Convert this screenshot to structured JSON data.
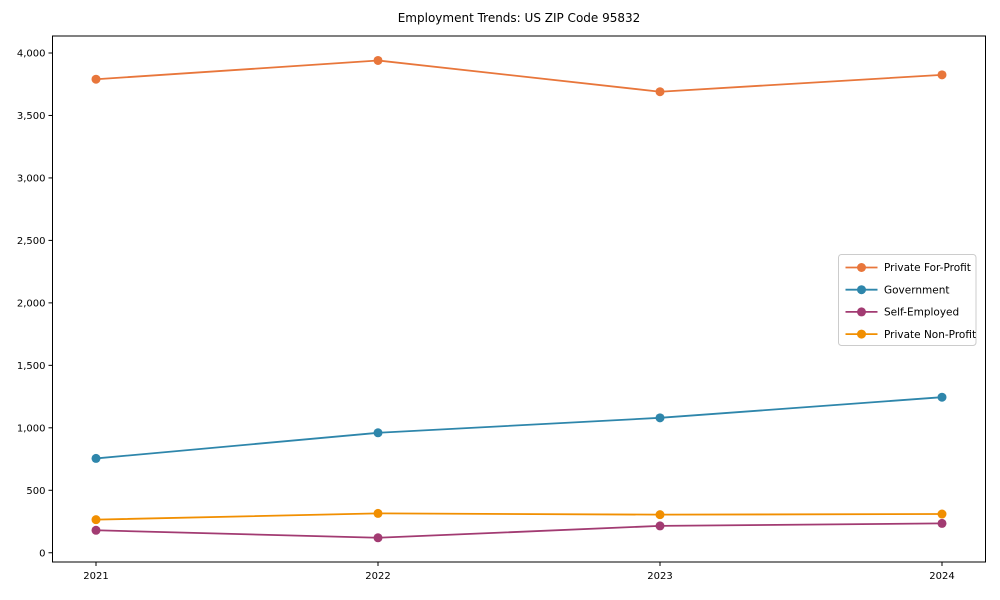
{
  "page": {
    "title": "Employment Trends: US ZIP Code 95832"
  },
  "chart_data": {
    "type": "line",
    "title": "Employment Trends: US ZIP Code 95832",
    "x": [
      2021,
      2022,
      2023,
      2024
    ],
    "x_tick_labels": [
      "2021",
      "2022",
      "2023",
      "2024"
    ],
    "series": [
      {
        "name": "Private For-Profit",
        "color": "#e8763b",
        "values": [
          3790,
          3940,
          3690,
          3825
        ]
      },
      {
        "name": "Government",
        "color": "#2e86ab",
        "values": [
          755,
          960,
          1080,
          1245
        ]
      },
      {
        "name": "Self-Employed",
        "color": "#a23b72",
        "values": [
          180,
          120,
          215,
          235
        ]
      },
      {
        "name": "Private Non-Profit",
        "color": "#f18f01",
        "values": [
          265,
          315,
          305,
          310
        ]
      }
    ],
    "yticks": [
      0,
      500,
      1000,
      1500,
      2000,
      2500,
      3000,
      3500,
      4000
    ],
    "ytick_labels": [
      "0",
      "500",
      "1,000",
      "1,500",
      "2,000",
      "2,500",
      "3,000",
      "3,500",
      "4,000"
    ],
    "ylim": [
      -74,
      4136
    ],
    "grid": false,
    "marker": "circle",
    "legend_position": "center-right",
    "axis_color": "#000000",
    "background_color": "#ffffff"
  }
}
